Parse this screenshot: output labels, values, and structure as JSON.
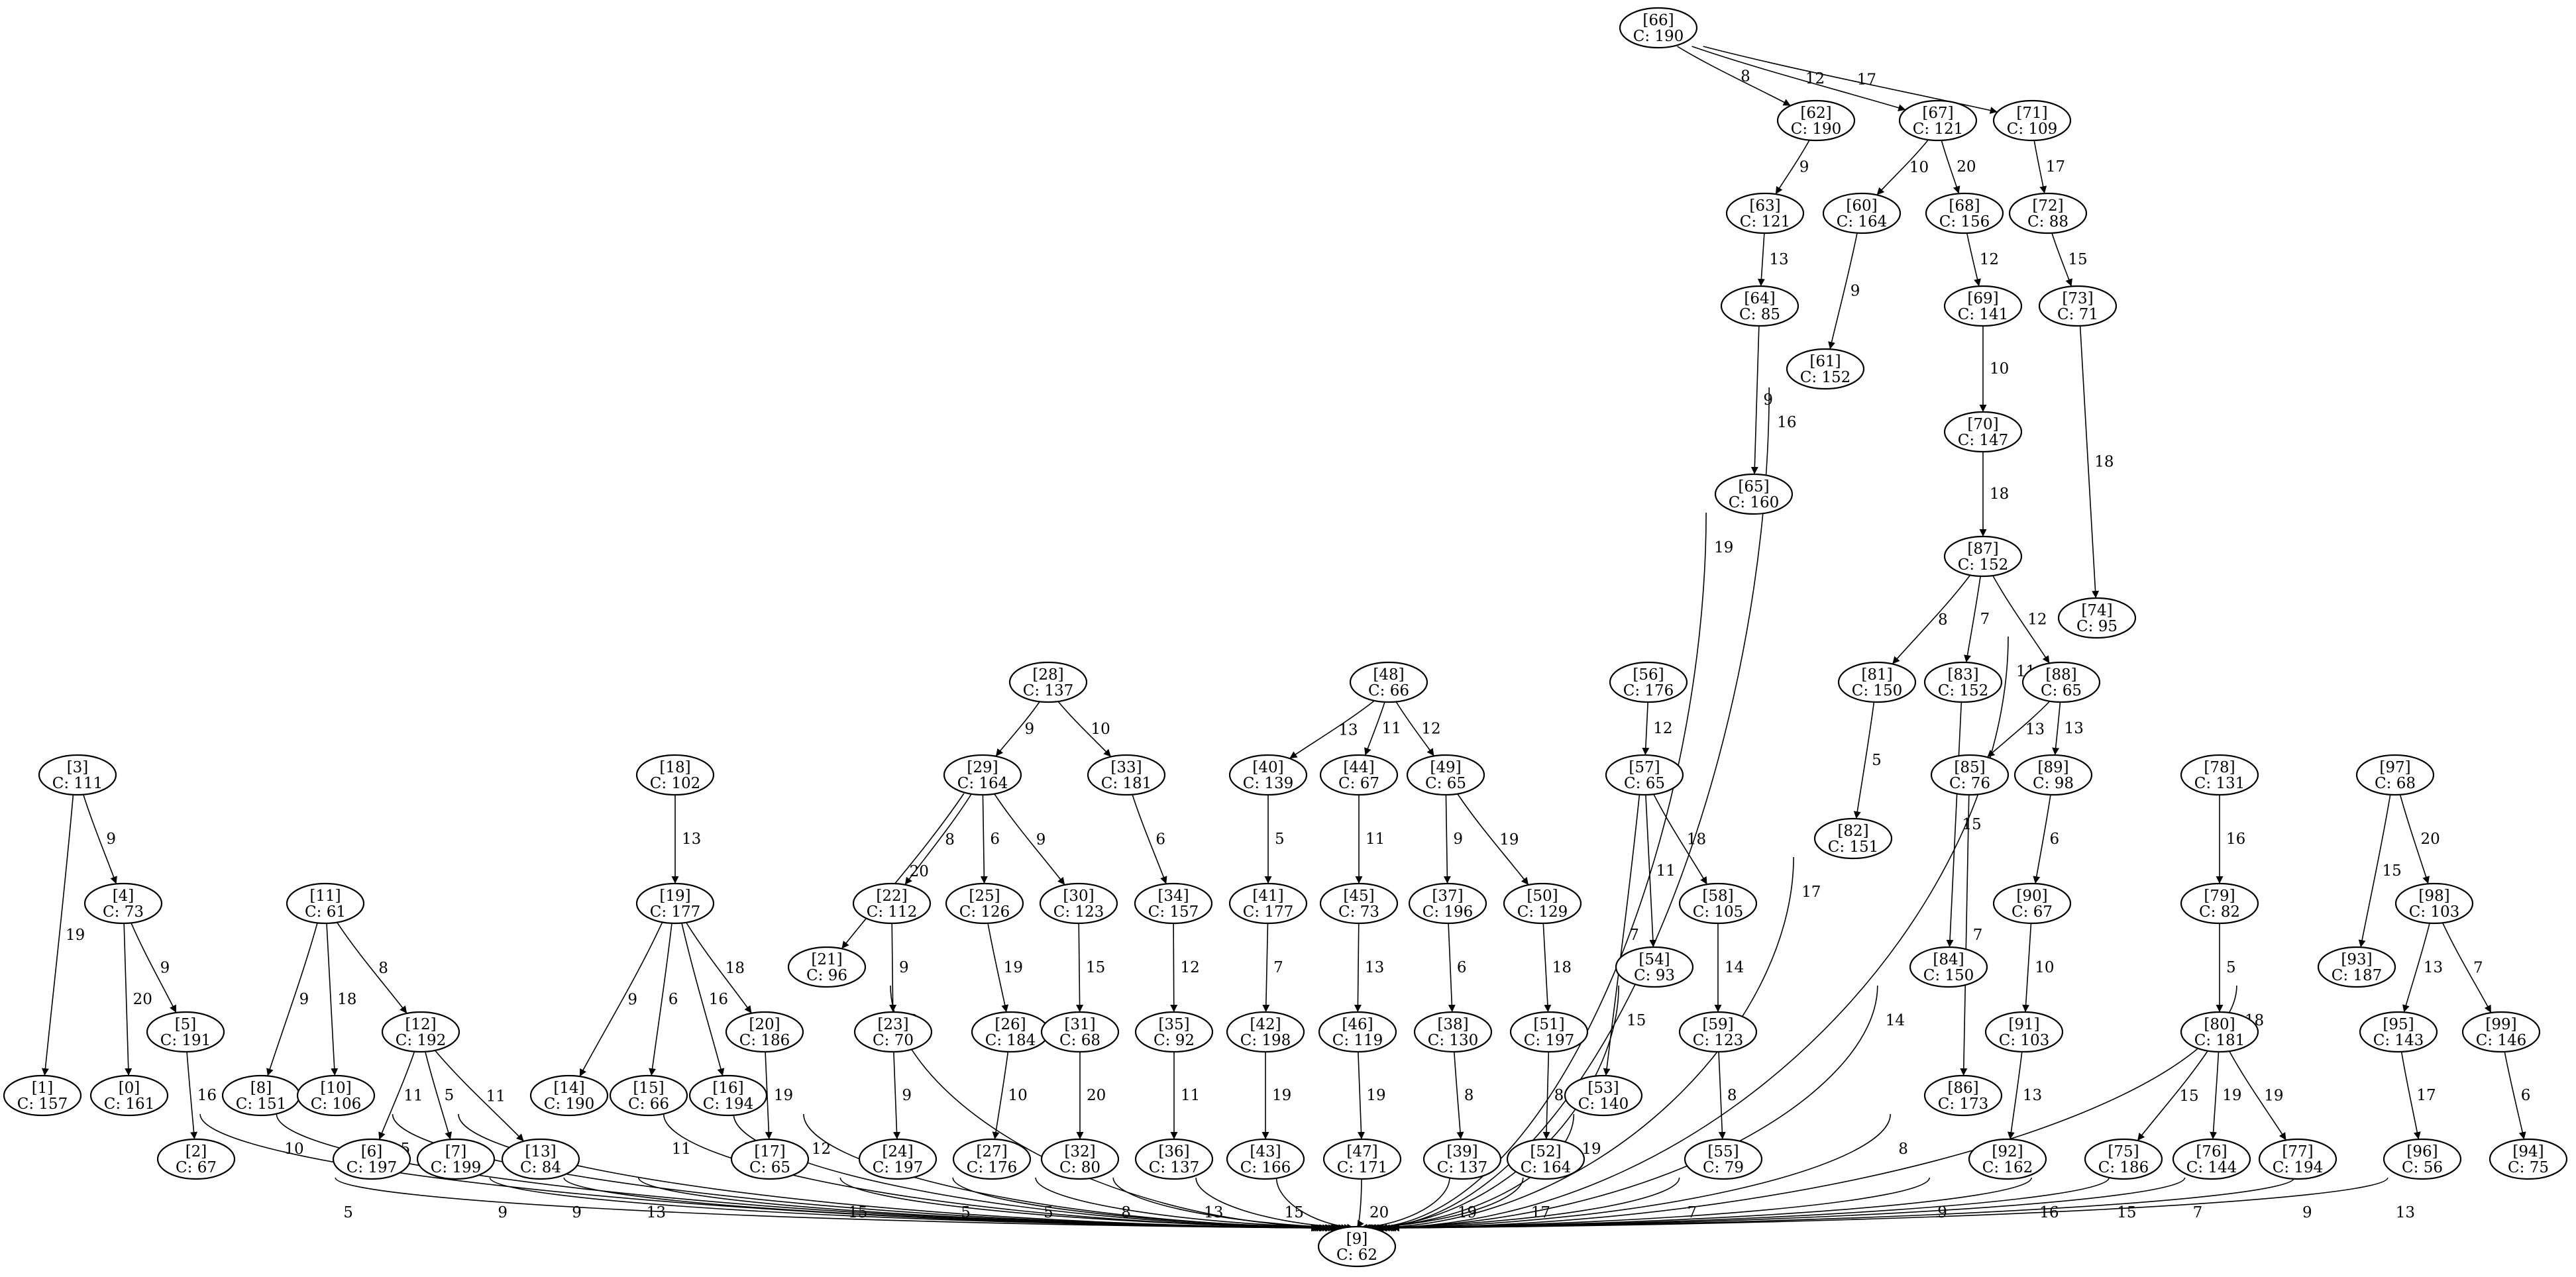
{
  "graph": {
    "type": "directed-graph",
    "node_label_prefix": "C: ",
    "nodes": [
      {
        "id": "66",
        "cost": "190"
      },
      {
        "id": "62",
        "cost": "190"
      },
      {
        "id": "67",
        "cost": "121"
      },
      {
        "id": "71",
        "cost": "109"
      },
      {
        "id": "63",
        "cost": "121"
      },
      {
        "id": "60",
        "cost": "164"
      },
      {
        "id": "68",
        "cost": "156"
      },
      {
        "id": "72",
        "cost": "88"
      },
      {
        "id": "64",
        "cost": "85"
      },
      {
        "id": "69",
        "cost": "141"
      },
      {
        "id": "73",
        "cost": "71"
      },
      {
        "id": "61",
        "cost": "152"
      },
      {
        "id": "70",
        "cost": "147"
      },
      {
        "id": "65",
        "cost": "160"
      },
      {
        "id": "87",
        "cost": "152"
      },
      {
        "id": "74",
        "cost": "95"
      },
      {
        "id": "28",
        "cost": "137"
      },
      {
        "id": "48",
        "cost": "66"
      },
      {
        "id": "56",
        "cost": "176"
      },
      {
        "id": "81",
        "cost": "150"
      },
      {
        "id": "83",
        "cost": "152"
      },
      {
        "id": "88",
        "cost": "65"
      },
      {
        "id": "3",
        "cost": "111"
      },
      {
        "id": "18",
        "cost": "102"
      },
      {
        "id": "29",
        "cost": "164"
      },
      {
        "id": "33",
        "cost": "181"
      },
      {
        "id": "40",
        "cost": "139"
      },
      {
        "id": "44",
        "cost": "67"
      },
      {
        "id": "49",
        "cost": "65"
      },
      {
        "id": "57",
        "cost": "65"
      },
      {
        "id": "85",
        "cost": "76"
      },
      {
        "id": "89",
        "cost": "98"
      },
      {
        "id": "78",
        "cost": "131"
      },
      {
        "id": "97",
        "cost": "68"
      },
      {
        "id": "82",
        "cost": "151"
      },
      {
        "id": "4",
        "cost": "73"
      },
      {
        "id": "11",
        "cost": "61"
      },
      {
        "id": "19",
        "cost": "177"
      },
      {
        "id": "21",
        "cost": "96"
      },
      {
        "id": "22",
        "cost": "112"
      },
      {
        "id": "25",
        "cost": "126"
      },
      {
        "id": "30",
        "cost": "123"
      },
      {
        "id": "34",
        "cost": "157"
      },
      {
        "id": "41",
        "cost": "177"
      },
      {
        "id": "45",
        "cost": "73"
      },
      {
        "id": "37",
        "cost": "196"
      },
      {
        "id": "50",
        "cost": "129"
      },
      {
        "id": "58",
        "cost": "105"
      },
      {
        "id": "90",
        "cost": "67"
      },
      {
        "id": "79",
        "cost": "82"
      },
      {
        "id": "98",
        "cost": "103"
      },
      {
        "id": "54",
        "cost": "93"
      },
      {
        "id": "84",
        "cost": "150"
      },
      {
        "id": "93",
        "cost": "187"
      },
      {
        "id": "5",
        "cost": "191"
      },
      {
        "id": "12",
        "cost": "192"
      },
      {
        "id": "20",
        "cost": "186"
      },
      {
        "id": "23",
        "cost": "70"
      },
      {
        "id": "26",
        "cost": "184"
      },
      {
        "id": "31",
        "cost": "68"
      },
      {
        "id": "35",
        "cost": "92"
      },
      {
        "id": "42",
        "cost": "198"
      },
      {
        "id": "46",
        "cost": "119"
      },
      {
        "id": "38",
        "cost": "130"
      },
      {
        "id": "51",
        "cost": "197"
      },
      {
        "id": "59",
        "cost": "123"
      },
      {
        "id": "91",
        "cost": "103"
      },
      {
        "id": "80",
        "cost": "181"
      },
      {
        "id": "95",
        "cost": "143"
      },
      {
        "id": "99",
        "cost": "146"
      },
      {
        "id": "1",
        "cost": "157"
      },
      {
        "id": "0",
        "cost": "161"
      },
      {
        "id": "8",
        "cost": "151"
      },
      {
        "id": "10",
        "cost": "106"
      },
      {
        "id": "14",
        "cost": "190"
      },
      {
        "id": "15",
        "cost": "66"
      },
      {
        "id": "16",
        "cost": "194"
      },
      {
        "id": "53",
        "cost": "140"
      },
      {
        "id": "86",
        "cost": "173"
      },
      {
        "id": "2",
        "cost": "67"
      },
      {
        "id": "6",
        "cost": "197"
      },
      {
        "id": "7",
        "cost": "199"
      },
      {
        "id": "13",
        "cost": "84"
      },
      {
        "id": "17",
        "cost": "65"
      },
      {
        "id": "24",
        "cost": "197"
      },
      {
        "id": "27",
        "cost": "176"
      },
      {
        "id": "32",
        "cost": "80"
      },
      {
        "id": "36",
        "cost": "137"
      },
      {
        "id": "43",
        "cost": "166"
      },
      {
        "id": "47",
        "cost": "171"
      },
      {
        "id": "39",
        "cost": "137"
      },
      {
        "id": "52",
        "cost": "164"
      },
      {
        "id": "55",
        "cost": "79"
      },
      {
        "id": "92",
        "cost": "162"
      },
      {
        "id": "75",
        "cost": "186"
      },
      {
        "id": "76",
        "cost": "144"
      },
      {
        "id": "77",
        "cost": "194"
      },
      {
        "id": "96",
        "cost": "56"
      },
      {
        "id": "94",
        "cost": "75"
      },
      {
        "id": "9",
        "cost": "62"
      }
    ],
    "edges": [
      {
        "from": "66",
        "to": "62",
        "weight": "8"
      },
      {
        "from": "66",
        "to": "67",
        "weight": "12"
      },
      {
        "from": "66",
        "to": "71",
        "weight": "17"
      },
      {
        "from": "62",
        "to": "63",
        "weight": "9"
      },
      {
        "from": "63",
        "to": "64",
        "weight": "13"
      },
      {
        "from": "64",
        "to": "65",
        "weight": "9"
      },
      {
        "from": "65",
        "to": "9",
        "weight": "19"
      },
      {
        "from": "67",
        "to": "60",
        "weight": "10"
      },
      {
        "from": "67",
        "to": "68",
        "weight": "20"
      },
      {
        "from": "60",
        "to": "61",
        "weight": "9"
      },
      {
        "from": "61",
        "to": "9",
        "weight": "16"
      },
      {
        "from": "68",
        "to": "69",
        "weight": "12"
      },
      {
        "from": "69",
        "to": "70",
        "weight": "10"
      },
      {
        "from": "70",
        "to": "87",
        "weight": "18"
      },
      {
        "from": "87",
        "to": "81",
        "weight": "8"
      },
      {
        "from": "87",
        "to": "83",
        "weight": "7"
      },
      {
        "from": "87",
        "to": "88",
        "weight": "12"
      },
      {
        "from": "71",
        "to": "72",
        "weight": "17"
      },
      {
        "from": "72",
        "to": "73",
        "weight": "15"
      },
      {
        "from": "73",
        "to": "74",
        "weight": "18"
      },
      {
        "from": "74",
        "to": "9",
        "weight": "11"
      },
      {
        "from": "81",
        "to": "82",
        "weight": "5"
      },
      {
        "from": "82",
        "to": "9",
        "weight": "17"
      },
      {
        "from": "83",
        "to": "84",
        "weight": "15"
      },
      {
        "from": "84",
        "to": "9",
        "weight": "14"
      },
      {
        "from": "88",
        "to": "85",
        "weight": "13"
      },
      {
        "from": "88",
        "to": "89",
        "weight": "13"
      },
      {
        "from": "85",
        "to": "86",
        "weight": "7"
      },
      {
        "from": "86",
        "to": "9",
        "weight": "8"
      },
      {
        "from": "89",
        "to": "90",
        "weight": "6"
      },
      {
        "from": "90",
        "to": "91",
        "weight": "10"
      },
      {
        "from": "91",
        "to": "92",
        "weight": "13"
      },
      {
        "from": "92",
        "to": "9",
        "weight": "9"
      },
      {
        "from": "3",
        "to": "1",
        "weight": "19"
      },
      {
        "from": "3",
        "to": "4",
        "weight": "9"
      },
      {
        "from": "4",
        "to": "0",
        "weight": "20"
      },
      {
        "from": "4",
        "to": "5",
        "weight": "9"
      },
      {
        "from": "5",
        "to": "2",
        "weight": "16"
      },
      {
        "from": "1",
        "to": "9",
        "weight": "9"
      },
      {
        "from": "0",
        "to": "9",
        "weight": "10"
      },
      {
        "from": "2",
        "to": "9",
        "weight": "5"
      },
      {
        "from": "11",
        "to": "8",
        "weight": "9"
      },
      {
        "from": "11",
        "to": "10",
        "weight": "18"
      },
      {
        "from": "11",
        "to": "12",
        "weight": "8"
      },
      {
        "from": "12",
        "to": "6",
        "weight": "11"
      },
      {
        "from": "12",
        "to": "7",
        "weight": "5"
      },
      {
        "from": "12",
        "to": "13",
        "weight": "11"
      },
      {
        "from": "8",
        "to": "9",
        "weight": "5"
      },
      {
        "from": "10",
        "to": "9",
        "weight": "5"
      },
      {
        "from": "6",
        "to": "9",
        "weight": "9"
      },
      {
        "from": "7",
        "to": "9",
        "weight": "9"
      },
      {
        "from": "13",
        "to": "9",
        "weight": "13"
      },
      {
        "from": "18",
        "to": "19",
        "weight": "13"
      },
      {
        "from": "19",
        "to": "14",
        "weight": "9"
      },
      {
        "from": "19",
        "to": "15",
        "weight": "6"
      },
      {
        "from": "19",
        "to": "16",
        "weight": "16"
      },
      {
        "from": "19",
        "to": "20",
        "weight": "18"
      },
      {
        "from": "20",
        "to": "17",
        "weight": "19"
      },
      {
        "from": "14",
        "to": "9",
        "weight": "11"
      },
      {
        "from": "15",
        "to": "9",
        "weight": "14"
      },
      {
        "from": "16",
        "to": "9",
        "weight": "12"
      },
      {
        "from": "17",
        "to": "9",
        "weight": "15"
      },
      {
        "from": "28",
        "to": "29",
        "weight": "9"
      },
      {
        "from": "28",
        "to": "33",
        "weight": "10"
      },
      {
        "from": "29",
        "to": "21",
        "weight": "20"
      },
      {
        "from": "29",
        "to": "22",
        "weight": "8"
      },
      {
        "from": "29",
        "to": "25",
        "weight": "6"
      },
      {
        "from": "29",
        "to": "30",
        "weight": "9"
      },
      {
        "from": "33",
        "to": "34",
        "weight": "6"
      },
      {
        "from": "22",
        "to": "23",
        "weight": "9"
      },
      {
        "from": "23",
        "to": "24",
        "weight": "9"
      },
      {
        "from": "25",
        "to": "26",
        "weight": "19"
      },
      {
        "from": "26",
        "to": "27",
        "weight": "10"
      },
      {
        "from": "30",
        "to": "31",
        "weight": "15"
      },
      {
        "from": "31",
        "to": "32",
        "weight": "20"
      },
      {
        "from": "34",
        "to": "35",
        "weight": "12"
      },
      {
        "from": "35",
        "to": "36",
        "weight": "11"
      },
      {
        "from": "21",
        "to": "9",
        "weight": "18"
      },
      {
        "from": "24",
        "to": "9",
        "weight": "5"
      },
      {
        "from": "27",
        "to": "9",
        "weight": "5"
      },
      {
        "from": "32",
        "to": "9",
        "weight": "8"
      },
      {
        "from": "36",
        "to": "9",
        "weight": "13"
      },
      {
        "from": "48",
        "to": "40",
        "weight": "13"
      },
      {
        "from": "48",
        "to": "44",
        "weight": "11"
      },
      {
        "from": "48",
        "to": "49",
        "weight": "12"
      },
      {
        "from": "40",
        "to": "41",
        "weight": "5"
      },
      {
        "from": "41",
        "to": "42",
        "weight": "7"
      },
      {
        "from": "42",
        "to": "43",
        "weight": "19"
      },
      {
        "from": "43",
        "to": "9",
        "weight": "15"
      },
      {
        "from": "44",
        "to": "45",
        "weight": "11"
      },
      {
        "from": "45",
        "to": "46",
        "weight": "13"
      },
      {
        "from": "46",
        "to": "47",
        "weight": "19"
      },
      {
        "from": "47",
        "to": "9",
        "weight": "20"
      },
      {
        "from": "49",
        "to": "37",
        "weight": "9"
      },
      {
        "from": "49",
        "to": "50",
        "weight": "19"
      },
      {
        "from": "37",
        "to": "38",
        "weight": "6"
      },
      {
        "from": "38",
        "to": "39",
        "weight": "8"
      },
      {
        "from": "39",
        "to": "9",
        "weight": "19"
      },
      {
        "from": "50",
        "to": "51",
        "weight": "18"
      },
      {
        "from": "51",
        "to": "52",
        "weight": "8"
      },
      {
        "from": "52",
        "to": "9",
        "weight": "17"
      },
      {
        "from": "56",
        "to": "57",
        "weight": "12"
      },
      {
        "from": "57",
        "to": "53",
        "weight": "7"
      },
      {
        "from": "57",
        "to": "54",
        "weight": "11"
      },
      {
        "from": "57",
        "to": "58",
        "weight": "18"
      },
      {
        "from": "58",
        "to": "59",
        "weight": "14"
      },
      {
        "from": "59",
        "to": "55",
        "weight": "8"
      },
      {
        "from": "53",
        "to": "9",
        "weight": "19"
      },
      {
        "from": "54",
        "to": "9",
        "weight": "15"
      },
      {
        "from": "55",
        "to": "9",
        "weight": "7"
      },
      {
        "from": "78",
        "to": "79",
        "weight": "16"
      },
      {
        "from": "79",
        "to": "80",
        "weight": "5"
      },
      {
        "from": "80",
        "to": "75",
        "weight": "15"
      },
      {
        "from": "80",
        "to": "76",
        "weight": "19"
      },
      {
        "from": "80",
        "to": "77",
        "weight": "19"
      },
      {
        "from": "75",
        "to": "9",
        "weight": "16"
      },
      {
        "from": "76",
        "to": "9",
        "weight": "15"
      },
      {
        "from": "77",
        "to": "9",
        "weight": "7"
      },
      {
        "from": "97",
        "to": "93",
        "weight": "15"
      },
      {
        "from": "97",
        "to": "98",
        "weight": "20"
      },
      {
        "from": "98",
        "to": "95",
        "weight": "13"
      },
      {
        "from": "98",
        "to": "99",
        "weight": "7"
      },
      {
        "from": "95",
        "to": "96",
        "weight": "17"
      },
      {
        "from": "99",
        "to": "94",
        "weight": "6"
      },
      {
        "from": "93",
        "to": "9",
        "weight": "18"
      },
      {
        "from": "96",
        "to": "9",
        "weight": "9"
      },
      {
        "from": "94",
        "to": "9",
        "weight": "13"
      }
    ]
  }
}
